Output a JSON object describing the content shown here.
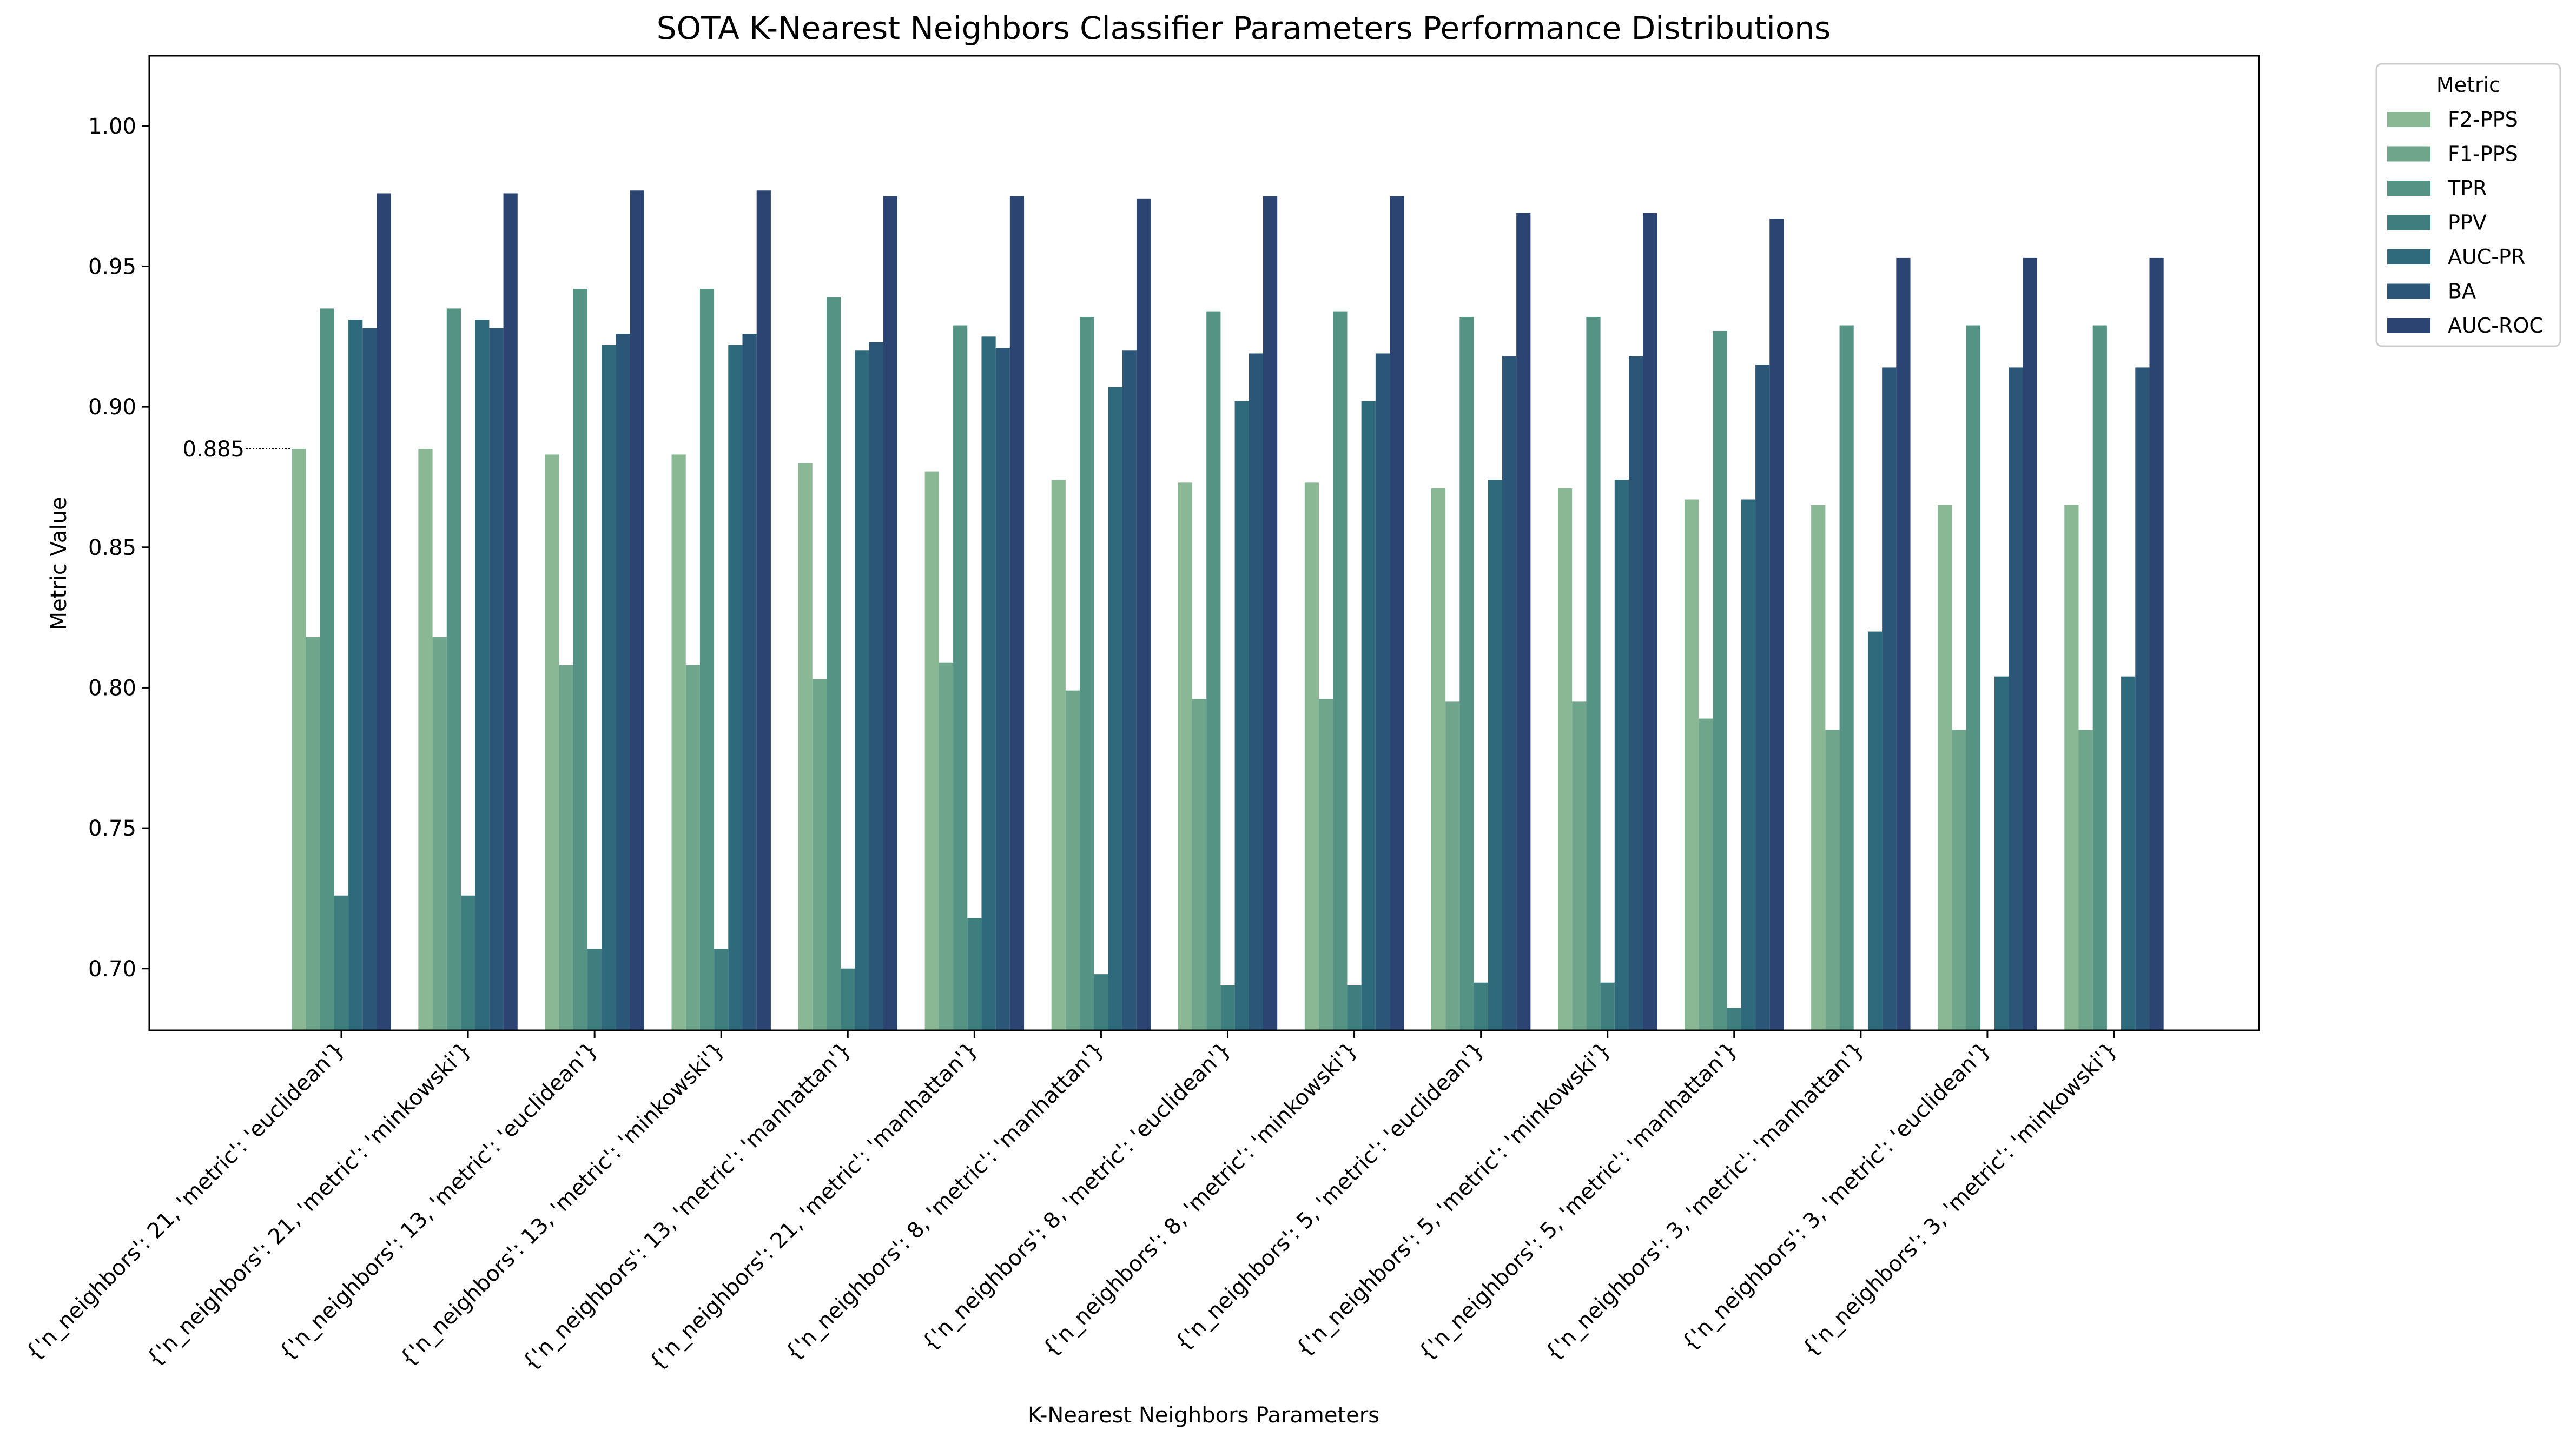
{
  "chart_data": {
    "type": "bar",
    "title": "SOTA K-Nearest Neighbors Classifier Parameters Performance Distributions",
    "xlabel": "K-Nearest Neighbors Parameters",
    "ylabel": "Metric Value",
    "ylim": [
      0.678,
      1.025
    ],
    "yticks": [
      "0.70",
      "0.75",
      "0.80",
      "0.85",
      "0.90",
      "0.95",
      "1.00"
    ],
    "grid": false,
    "legend": {
      "title": "Metric",
      "placement": "outside top-right"
    },
    "annotation": {
      "text": "0.885",
      "value": 0.885
    },
    "categories": [
      "{'n_neighbors': 21, 'metric': 'euclidean'}",
      "{'n_neighbors': 21, 'metric': 'minkowski'}",
      "{'n_neighbors': 13, 'metric': 'euclidean'}",
      "{'n_neighbors': 13, 'metric': 'minkowski'}",
      "{'n_neighbors': 13, 'metric': 'manhattan'}",
      "{'n_neighbors': 21, 'metric': 'manhattan'}",
      "{'n_neighbors': 8, 'metric': 'manhattan'}",
      "{'n_neighbors': 8, 'metric': 'euclidean'}",
      "{'n_neighbors': 8, 'metric': 'minkowski'}",
      "{'n_neighbors': 5, 'metric': 'euclidean'}",
      "{'n_neighbors': 5, 'metric': 'minkowski'}",
      "{'n_neighbors': 5, 'metric': 'manhattan'}",
      "{'n_neighbors': 3, 'metric': 'manhattan'}",
      "{'n_neighbors': 3, 'metric': 'euclidean'}",
      "{'n_neighbors': 3, 'metric': 'minkowski'}"
    ],
    "series": [
      {
        "name": "F2-PPS",
        "color": "#8ab894",
        "values": [
          0.885,
          0.885,
          0.883,
          0.883,
          0.88,
          0.877,
          0.874,
          0.873,
          0.873,
          0.871,
          0.871,
          0.867,
          0.865,
          0.865,
          0.865
        ]
      },
      {
        "name": "F1-PPS",
        "color": "#6fa58b",
        "values": [
          0.818,
          0.818,
          0.808,
          0.808,
          0.803,
          0.809,
          0.799,
          0.796,
          0.796,
          0.795,
          0.795,
          0.789,
          0.785,
          0.785,
          0.785
        ]
      },
      {
        "name": "TPR",
        "color": "#559385",
        "values": [
          0.935,
          0.935,
          0.942,
          0.942,
          0.939,
          0.929,
          0.932,
          0.934,
          0.934,
          0.932,
          0.932,
          0.927,
          0.929,
          0.929,
          0.929
        ]
      },
      {
        "name": "PPV",
        "color": "#3f7e7f",
        "values": [
          0.726,
          0.726,
          0.707,
          0.707,
          0.7,
          0.718,
          0.698,
          0.694,
          0.694,
          0.695,
          0.695,
          0.686,
          0.678,
          0.678,
          0.678
        ]
      },
      {
        "name": "AUC-PR",
        "color": "#2e6a7c",
        "values": [
          0.931,
          0.931,
          0.922,
          0.922,
          0.92,
          0.925,
          0.907,
          0.902,
          0.902,
          0.874,
          0.874,
          0.867,
          0.82,
          0.804,
          0.804
        ]
      },
      {
        "name": "BA",
        "color": "#2b5678",
        "values": [
          0.928,
          0.928,
          0.926,
          0.926,
          0.923,
          0.921,
          0.92,
          0.919,
          0.919,
          0.918,
          0.918,
          0.915,
          0.914,
          0.914,
          0.914
        ]
      },
      {
        "name": "AUC-ROC",
        "color": "#2c4472",
        "values": [
          0.976,
          0.976,
          0.977,
          0.977,
          0.975,
          0.975,
          0.974,
          0.975,
          0.975,
          0.969,
          0.969,
          0.967,
          0.953,
          0.953,
          0.953
        ]
      }
    ]
  }
}
